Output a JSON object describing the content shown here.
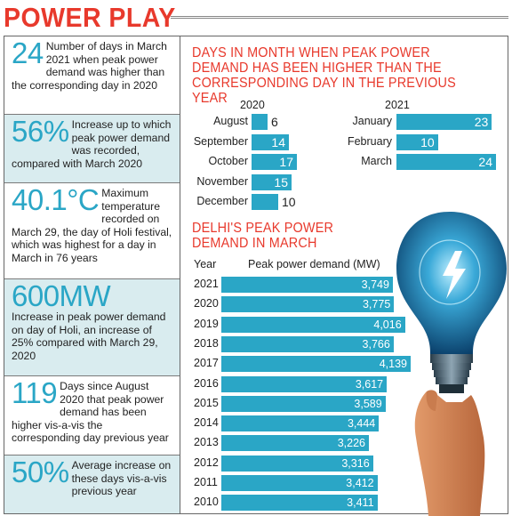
{
  "title": "POWER PLAY",
  "facts": [
    {
      "big": "24",
      "text": "Number of days in March 2021 when peak power demand was higher than the corresponding day in 2020"
    },
    {
      "big": "56%",
      "text": "Increase up to which peak power demand was recorded, compared with March 2020"
    },
    {
      "big": "40.1°C",
      "text": "Maximum temperature recorded on March 29, the day of Holi festival, which was highest for a day in March in 76 years"
    },
    {
      "big": "600MW",
      "text": "Increase in peak power demand on day of Holi, an increase of 25% compared with March 29, 2020"
    },
    {
      "big": "119",
      "text": "Days since August 2020 that peak power demand has been higher vis-a-vis the corresponding day previous year"
    },
    {
      "big": "50%",
      "text": "Average increase on these days vis-a-vis previous year"
    }
  ],
  "colors": {
    "accent": "#e8392c",
    "bar": "#2aa6c6",
    "shade": "#d9ecef"
  },
  "chart_data": [
    {
      "type": "bar",
      "title": "DAYS IN MONTH WHEN PEAK POWER DEMAND HAS BEEN HIGHER THAN THE CORRESPONDING DAY IN THE PREVIOUS YEAR",
      "groups": [
        {
          "name": "2020",
          "categories": [
            "August",
            "September",
            "October",
            "November",
            "December"
          ],
          "values": [
            6,
            14,
            17,
            15,
            10
          ]
        },
        {
          "name": "2021",
          "categories": [
            "January",
            "February",
            "March"
          ],
          "values": [
            23,
            10,
            24
          ]
        }
      ],
      "orientation": "horizontal",
      "xlim": [
        0,
        24
      ]
    },
    {
      "type": "bar",
      "title": "DELHI'S PEAK POWER DEMAND IN MARCH",
      "xlabel_left": "Year",
      "value_header": "Peak power demand (MW)",
      "categories": [
        "2021",
        "2020",
        "2019",
        "2018",
        "2017",
        "2016",
        "2015",
        "2014",
        "2013",
        "2012",
        "2011",
        "2010"
      ],
      "values": [
        3749,
        3775,
        4016,
        3766,
        4139,
        3617,
        3589,
        3444,
        3226,
        3316,
        3412,
        3411
      ],
      "value_labels": [
        "3,749",
        "3,775",
        "4,016",
        "3,766",
        "4,139",
        "3,617",
        "3,589",
        "3,444",
        "3,226",
        "3,316",
        "3,412",
        "3,411"
      ],
      "orientation": "horizontal",
      "xlim": [
        0,
        4139
      ]
    }
  ]
}
